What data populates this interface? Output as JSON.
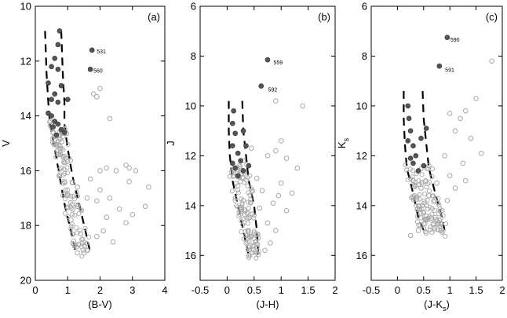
{
  "chart_data": [
    {
      "type": "scatter",
      "panel_label": "(a)",
      "xlabel": "(B-V)",
      "ylabel": "V",
      "xlim": [
        0,
        4
      ],
      "ylim": [
        20,
        10
      ],
      "y_inverted": true,
      "xticks": [
        0,
        1,
        2,
        3,
        4
      ],
      "yticks": [
        10,
        12,
        14,
        16,
        18,
        20
      ],
      "highlight_labels": [
        {
          "text": "531",
          "x": 1.8,
          "y": 11.6
        },
        {
          "text": "560",
          "x": 1.7,
          "y": 12.3
        }
      ],
      "series": [
        {
          "role": "field",
          "style": "open-gray",
          "points": [
            [
              1.75,
              11.6
            ],
            [
              1.9,
              13.3
            ],
            [
              1.8,
              13.2
            ],
            [
              2.0,
              13.0
            ],
            [
              2.3,
              14.1
            ],
            [
              2.9,
              15.9
            ],
            [
              2.8,
              15.8
            ],
            [
              2.2,
              15.9
            ],
            [
              2.0,
              16.0
            ],
            [
              2.5,
              16.0
            ],
            [
              3.1,
              16.0
            ],
            [
              2.9,
              16.4
            ],
            [
              3.5,
              16.6
            ],
            [
              3.4,
              17.3
            ],
            [
              2.6,
              17.4
            ],
            [
              3.0,
              17.6
            ],
            [
              2.8,
              17.9
            ],
            [
              2.2,
              17.7
            ],
            [
              2.1,
              18.2
            ],
            [
              1.9,
              18.4
            ],
            [
              2.4,
              18.6
            ],
            [
              1.6,
              18.9
            ],
            [
              1.5,
              19.0
            ],
            [
              1.3,
              19.0
            ],
            [
              1.2,
              18.7
            ],
            [
              1.4,
              18.3
            ],
            [
              1.1,
              17.8
            ],
            [
              1.3,
              17.3
            ],
            [
              1.0,
              16.9
            ],
            [
              0.9,
              16.4
            ],
            [
              0.8,
              15.9
            ],
            [
              0.7,
              15.4
            ],
            [
              0.6,
              14.9
            ],
            [
              0.55,
              14.6
            ],
            [
              1.3,
              16.6
            ],
            [
              1.6,
              17.0
            ],
            [
              1.9,
              17.1
            ],
            [
              2.3,
              17.0
            ],
            [
              1.7,
              16.3
            ],
            [
              2.0,
              16.7
            ]
          ]
        },
        {
          "role": "members",
          "style": "filled-dark",
          "points": [
            [
              0.75,
              10.9
            ],
            [
              0.7,
              11.4
            ],
            [
              0.6,
              11.9
            ],
            [
              0.5,
              12.2
            ],
            [
              0.7,
              12.3
            ],
            [
              0.4,
              12.8
            ],
            [
              0.8,
              12.9
            ],
            [
              0.6,
              13.2
            ],
            [
              0.5,
              13.4
            ],
            [
              0.7,
              13.5
            ],
            [
              1.0,
              13.4
            ],
            [
              0.4,
              13.9
            ],
            [
              0.5,
              14.0
            ],
            [
              0.6,
              14.2
            ],
            [
              0.55,
              14.4
            ],
            [
              0.7,
              14.3
            ],
            [
              0.8,
              14.5
            ],
            [
              0.9,
              14.6
            ],
            [
              0.65,
              14.7
            ]
          ]
        },
        {
          "role": "highlight",
          "style": "filled-dark",
          "points": [
            [
              1.75,
              11.6
            ],
            [
              1.7,
              12.3
            ]
          ]
        }
      ],
      "isochrones": [
        {
          "name": "left",
          "points": [
            [
              0.3,
              10.9
            ],
            [
              0.35,
              12.5
            ],
            [
              0.4,
              13.5
            ],
            [
              0.45,
              14.3
            ],
            [
              0.6,
              15.2
            ],
            [
              0.75,
              16.2
            ],
            [
              0.9,
              17.2
            ],
            [
              1.1,
              18.2
            ],
            [
              1.25,
              19.0
            ]
          ]
        },
        {
          "name": "right",
          "points": [
            [
              0.8,
              10.9
            ],
            [
              0.85,
              12.5
            ],
            [
              0.9,
              13.5
            ],
            [
              0.9,
              14.3
            ],
            [
              1.0,
              15.2
            ],
            [
              1.15,
              16.2
            ],
            [
              1.35,
              17.2
            ],
            [
              1.55,
              18.2
            ],
            [
              1.7,
              19.0
            ]
          ]
        }
      ]
    },
    {
      "type": "scatter",
      "panel_label": "(b)",
      "xlabel": "(J-H)",
      "ylabel": "J",
      "xlim": [
        -0.5,
        2
      ],
      "ylim": [
        17,
        6
      ],
      "y_inverted": true,
      "xticks": [
        -0.5,
        0,
        0.5,
        1,
        1.5,
        2
      ],
      "yticks": [
        6,
        8,
        10,
        12,
        14,
        16
      ],
      "highlight_labels": [
        {
          "text": "559",
          "x": 0.8,
          "y": 8.2
        },
        {
          "text": "592",
          "x": 0.7,
          "y": 9.3
        }
      ],
      "series": [
        {
          "role": "field",
          "style": "open-gray",
          "points": [
            [
              1.4,
              10.0
            ],
            [
              0.9,
              9.8
            ],
            [
              1.0,
              11.4
            ],
            [
              0.9,
              11.8
            ],
            [
              1.1,
              12.1
            ],
            [
              1.3,
              12.5
            ],
            [
              1.0,
              13.1
            ],
            [
              0.95,
              13.6
            ],
            [
              0.85,
              13.9
            ],
            [
              1.1,
              14.2
            ],
            [
              0.75,
              14.7
            ],
            [
              0.9,
              15.0
            ],
            [
              0.8,
              15.5
            ],
            [
              0.7,
              15.8
            ],
            [
              0.55,
              15.9
            ],
            [
              0.4,
              16.0
            ],
            [
              0.5,
              15.1
            ],
            [
              0.4,
              14.5
            ],
            [
              0.3,
              13.8
            ],
            [
              0.2,
              13.2
            ],
            [
              0.25,
              12.6
            ],
            [
              0.3,
              12.2
            ],
            [
              0.45,
              11.7
            ],
            [
              0.55,
              12.9
            ],
            [
              0.65,
              13.4
            ],
            [
              0.6,
              14.1
            ],
            [
              0.35,
              15.2
            ],
            [
              0.5,
              15.6
            ],
            [
              0.75,
              12.0
            ],
            [
              1.2,
              13.5
            ]
          ]
        },
        {
          "role": "members",
          "style": "filled-dark",
          "points": [
            [
              0.12,
              10.2
            ],
            [
              0.1,
              10.7
            ],
            [
              0.15,
              11.1
            ],
            [
              0.1,
              11.6
            ],
            [
              0.2,
              11.9
            ],
            [
              0.1,
              12.3
            ],
            [
              0.15,
              12.5
            ],
            [
              0.2,
              12.8
            ],
            [
              0.3,
              12.6
            ],
            [
              0.25,
              12.2
            ],
            [
              0.35,
              11.6
            ],
            [
              0.3,
              11.0
            ],
            [
              0.4,
              12.4
            ]
          ]
        },
        {
          "role": "highlight",
          "style": "filled-dark",
          "points": [
            [
              0.75,
              8.15
            ],
            [
              0.63,
              9.2
            ]
          ]
        }
      ],
      "isochrones": [
        {
          "name": "left",
          "points": [
            [
              0.03,
              9.8
            ],
            [
              0.03,
              11.0
            ],
            [
              0.05,
              12.0
            ],
            [
              0.1,
              13.0
            ],
            [
              0.2,
              14.0
            ],
            [
              0.3,
              15.0
            ],
            [
              0.4,
              16.0
            ]
          ]
        },
        {
          "name": "right",
          "points": [
            [
              0.28,
              9.8
            ],
            [
              0.3,
              11.0
            ],
            [
              0.35,
              12.0
            ],
            [
              0.4,
              13.0
            ],
            [
              0.5,
              14.0
            ],
            [
              0.55,
              15.0
            ],
            [
              0.58,
              16.0
            ]
          ]
        }
      ]
    },
    {
      "type": "scatter",
      "panel_label": "(c)",
      "xlabel": "(J-Ks)",
      "xlabel_main": "(J-K",
      "xlabel_sub": "s",
      "xlabel_tail": ")",
      "ylabel": "Ks",
      "ylabel_main": "K",
      "ylabel_sub": "s",
      "xlim": [
        -0.5,
        2
      ],
      "ylim": [
        17,
        6
      ],
      "y_inverted": true,
      "xticks": [
        -0.5,
        0,
        0.5,
        1,
        1.5,
        2
      ],
      "yticks": [
        6,
        8,
        10,
        12,
        14,
        16
      ],
      "highlight_labels": [
        {
          "text": "590",
          "x": 0.95,
          "y": 7.3
        },
        {
          "text": "591",
          "x": 0.85,
          "y": 8.5
        }
      ],
      "series": [
        {
          "role": "field",
          "style": "open-gray",
          "points": [
            [
              1.8,
              8.2
            ],
            [
              1.5,
              9.7
            ],
            [
              1.3,
              10.2
            ],
            [
              1.2,
              10.5
            ],
            [
              1.1,
              11.0
            ],
            [
              1.0,
              10.3
            ],
            [
              1.4,
              11.3
            ],
            [
              1.6,
              11.9
            ],
            [
              1.25,
              12.3
            ],
            [
              1.0,
              12.8
            ],
            [
              1.1,
              13.3
            ],
            [
              0.95,
              13.8
            ],
            [
              0.85,
              14.2
            ],
            [
              0.8,
              14.6
            ],
            [
              0.7,
              14.9
            ],
            [
              0.55,
              15.1
            ],
            [
              0.4,
              15.0
            ],
            [
              0.5,
              14.3
            ],
            [
              0.35,
              13.7
            ],
            [
              0.3,
              13.0
            ],
            [
              0.45,
              13.3
            ],
            [
              0.6,
              13.6
            ],
            [
              0.75,
              13.1
            ],
            [
              0.6,
              12.4
            ],
            [
              0.9,
              12.0
            ],
            [
              1.3,
              13.0
            ],
            [
              0.25,
              15.2
            ],
            [
              0.65,
              14.5
            ]
          ]
        },
        {
          "role": "members",
          "style": "filled-dark",
          "points": [
            [
              0.2,
              10.0
            ],
            [
              0.22,
              10.5
            ],
            [
              0.25,
              11.0
            ],
            [
              0.2,
              11.4
            ],
            [
              0.3,
              11.6
            ],
            [
              0.25,
              12.1
            ],
            [
              0.3,
              12.3
            ],
            [
              0.4,
              12.6
            ],
            [
              0.35,
              12.0
            ],
            [
              0.45,
              11.3
            ],
            [
              0.5,
              12.4
            ],
            [
              0.55,
              10.9
            ]
          ]
        },
        {
          "role": "highlight",
          "style": "filled-dark",
          "points": [
            [
              0.95,
              7.25
            ],
            [
              0.8,
              8.4
            ]
          ]
        }
      ],
      "isochrones": [
        {
          "name": "left",
          "points": [
            [
              0.12,
              9.4
            ],
            [
              0.12,
              10.5
            ],
            [
              0.14,
              11.5
            ],
            [
              0.18,
              12.5
            ],
            [
              0.3,
              13.5
            ],
            [
              0.4,
              14.5
            ],
            [
              0.5,
              15.0
            ]
          ]
        },
        {
          "name": "right",
          "points": [
            [
              0.48,
              9.4
            ],
            [
              0.5,
              10.5
            ],
            [
              0.55,
              11.5
            ],
            [
              0.6,
              12.5
            ],
            [
              0.72,
              13.5
            ],
            [
              0.85,
              14.5
            ],
            [
              0.9,
              15.0
            ]
          ]
        }
      ]
    }
  ]
}
